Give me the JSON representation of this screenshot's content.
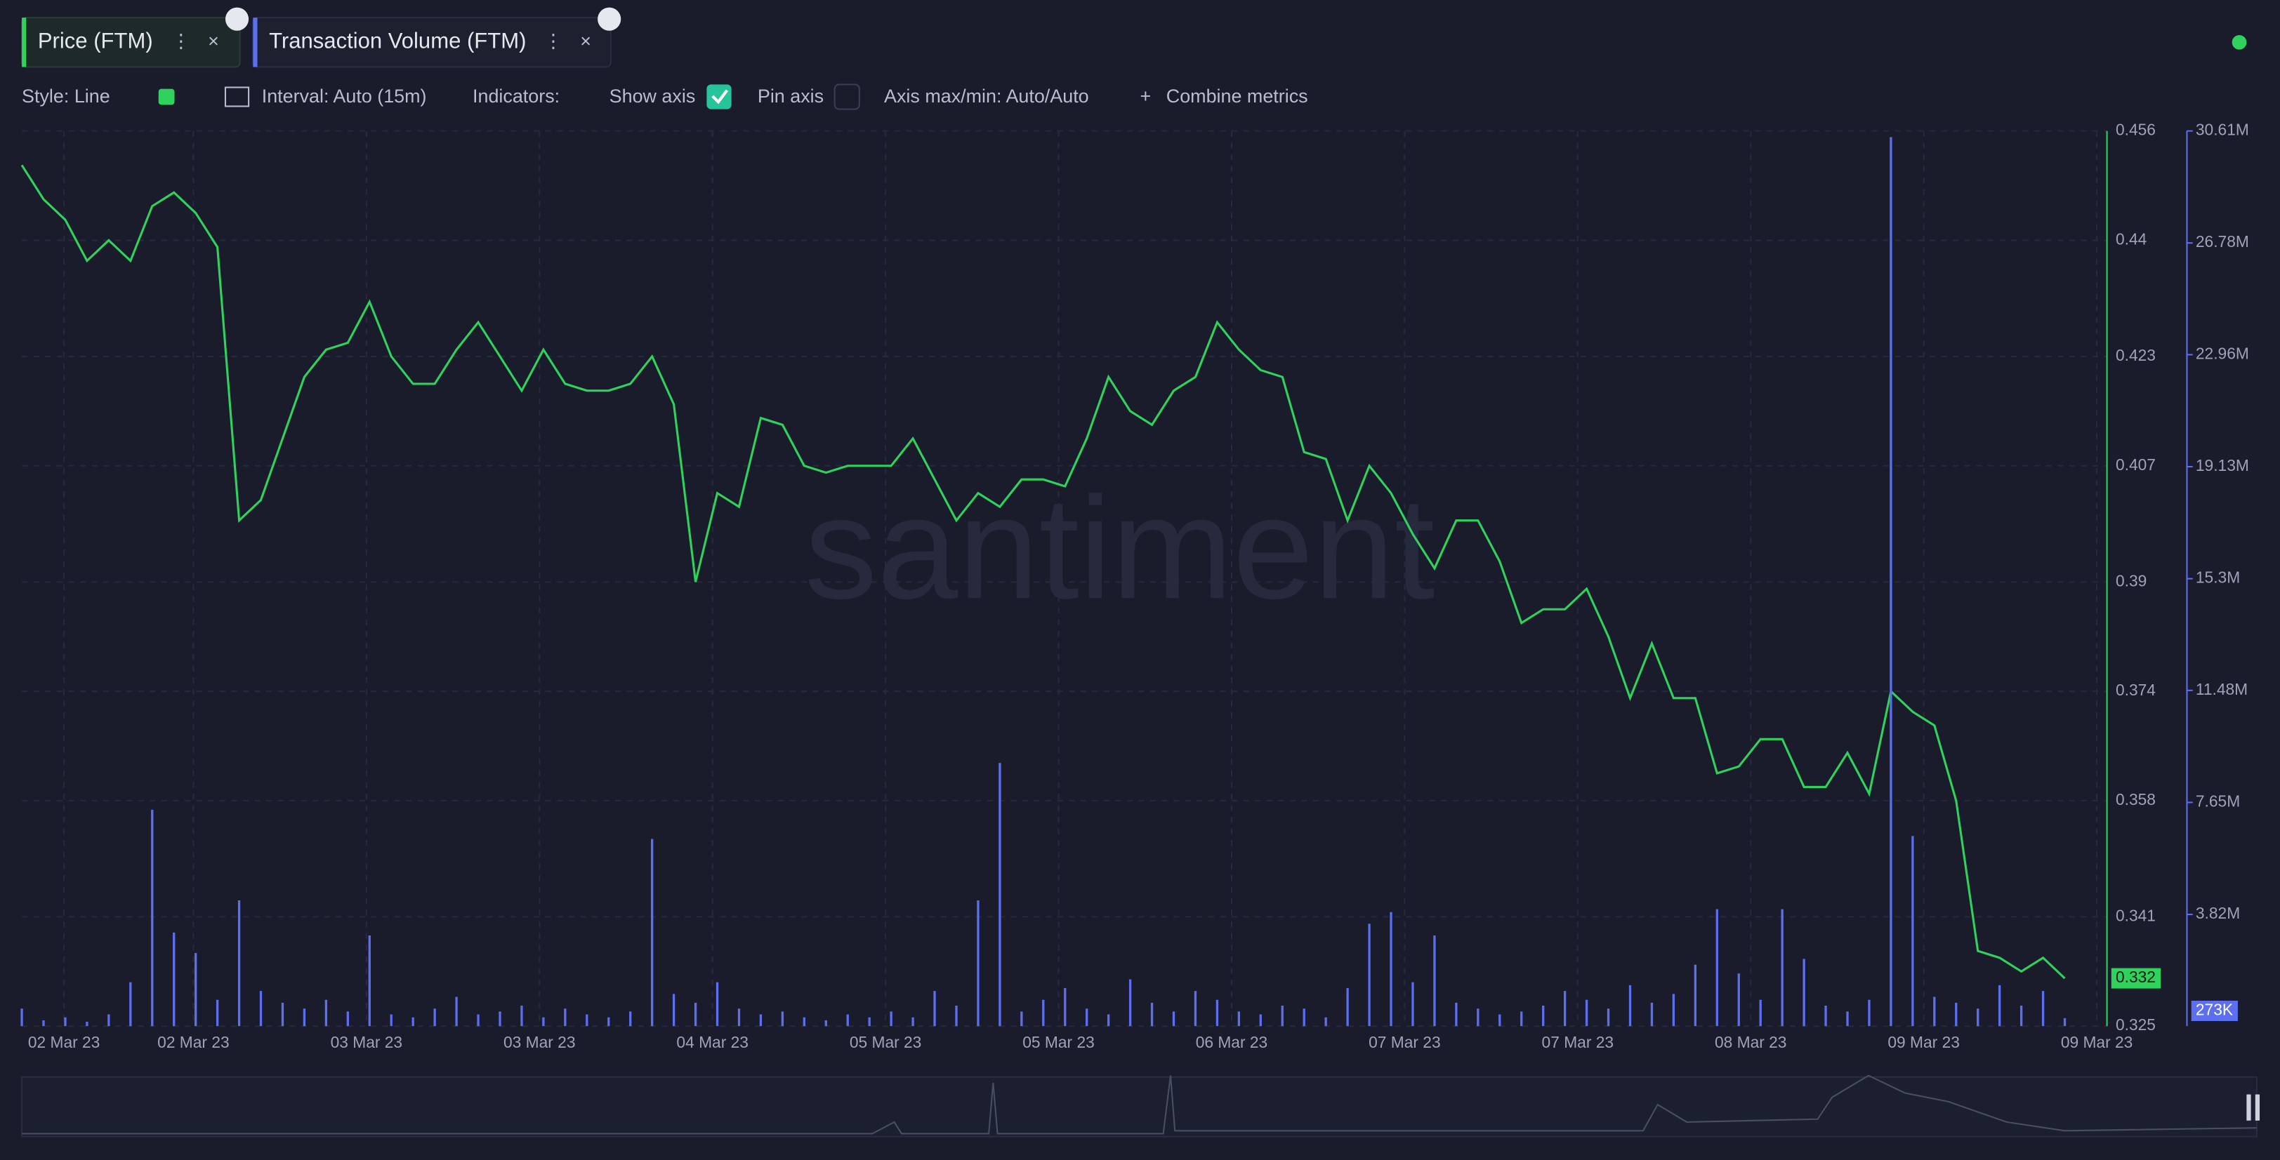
{
  "ui": {
    "tabs": [
      "Price (FTM)",
      "Transaction Volume (FTM)"
    ],
    "style": "Style: Line",
    "interval": "Interval: Auto (15m)",
    "indicators": "Indicators:",
    "show_axis": "Show axis",
    "pin_axis": "Pin axis",
    "axis_minmax": "Axis max/min: Auto/Auto",
    "combine": "Combine metrics",
    "watermark": "santiment"
  },
  "chart_data": {
    "type": "line_bar",
    "xtick_labels": [
      "02 Mar 23",
      "02 Mar 23",
      "03 Mar 23",
      "03 Mar 23",
      "04 Mar 23",
      "05 Mar 23",
      "05 Mar 23",
      "06 Mar 23",
      "07 Mar 23",
      "07 Mar 23",
      "08 Mar 23",
      "09 Mar 23",
      "09 Mar 23"
    ],
    "ylim": [
      0.325,
      0.456
    ],
    "yticks": [
      0.325,
      0.341,
      0.358,
      0.374,
      0.39,
      0.407,
      0.423,
      0.44,
      0.456
    ],
    "y2lim": [
      0,
      30610000
    ],
    "y2ticks": [
      {
        "value": 3820000,
        "label": "3.82M"
      },
      {
        "value": 7650000,
        "label": "7.65M"
      },
      {
        "value": 11480000,
        "label": "11.48M"
      },
      {
        "value": 15300000,
        "label": "15.3M"
      },
      {
        "value": 19130000,
        "label": "19.13M"
      },
      {
        "value": 22960000,
        "label": "22.96M"
      },
      {
        "value": 26780000,
        "label": "26.78M"
      },
      {
        "value": 30610000,
        "label": "30.61M"
      }
    ],
    "grid": true,
    "series": [
      {
        "name": "Price (FTM)",
        "type": "line",
        "color": "#2fd35c",
        "values": [
          0.451,
          0.446,
          0.443,
          0.437,
          0.44,
          0.437,
          0.445,
          0.447,
          0.444,
          0.439,
          0.399,
          0.402,
          0.411,
          0.42,
          0.424,
          0.425,
          0.431,
          0.423,
          0.419,
          0.419,
          0.424,
          0.428,
          0.423,
          0.418,
          0.424,
          0.419,
          0.418,
          0.418,
          0.419,
          0.423,
          0.416,
          0.39,
          0.403,
          0.401,
          0.414,
          0.413,
          0.407,
          0.406,
          0.407,
          0.407,
          0.407,
          0.411,
          0.405,
          0.399,
          0.403,
          0.401,
          0.405,
          0.405,
          0.404,
          0.411,
          0.42,
          0.415,
          0.413,
          0.418,
          0.42,
          0.428,
          0.424,
          0.421,
          0.42,
          0.409,
          0.408,
          0.399,
          0.407,
          0.403,
          0.397,
          0.392,
          0.399,
          0.399,
          0.393,
          0.384,
          0.386,
          0.386,
          0.389,
          0.382,
          0.373,
          0.381,
          0.373,
          0.373,
          0.362,
          0.363,
          0.367,
          0.367,
          0.36,
          0.36,
          0.365,
          0.359,
          0.374,
          0.371,
          0.369,
          0.358,
          0.336,
          0.335,
          0.333,
          0.335,
          0.332
        ]
      },
      {
        "name": "Transaction Volume (FTM)",
        "type": "bar",
        "axis": "y2",
        "color": "#5c6ff0",
        "values": [
          600000,
          200000,
          300000,
          150000,
          400000,
          1500000,
          7400000,
          3200000,
          2500000,
          900000,
          4300000,
          1200000,
          800000,
          600000,
          900000,
          500000,
          3100000,
          400000,
          300000,
          600000,
          1000000,
          400000,
          500000,
          700000,
          300000,
          600000,
          400000,
          300000,
          500000,
          6400000,
          1100000,
          800000,
          1500000,
          600000,
          400000,
          500000,
          300000,
          200000,
          400000,
          300000,
          500000,
          300000,
          1200000,
          700000,
          4300000,
          9000000,
          500000,
          900000,
          1300000,
          600000,
          400000,
          1600000,
          800000,
          500000,
          1200000,
          900000,
          500000,
          400000,
          700000,
          600000,
          300000,
          1300000,
          3500000,
          3900000,
          1500000,
          3100000,
          800000,
          600000,
          400000,
          500000,
          700000,
          1200000,
          900000,
          600000,
          1400000,
          800000,
          1100000,
          2100000,
          4000000,
          1800000,
          900000,
          4000000,
          2300000,
          700000,
          500000,
          900000,
          30400000,
          6500000,
          1000000,
          800000,
          600000,
          1400000,
          700000,
          1200000,
          273000
        ],
        "value_labels": [
          null,
          null,
          null,
          null,
          null,
          null,
          null,
          null,
          null,
          null,
          null,
          null,
          null,
          null,
          null,
          null,
          null,
          null,
          null,
          null,
          null,
          null,
          null,
          null,
          null,
          null,
          null,
          null,
          null,
          null,
          null,
          null,
          null,
          null,
          null,
          null,
          null,
          null,
          null,
          null,
          null,
          null,
          null,
          null,
          null,
          null,
          null,
          null,
          null,
          null,
          null,
          null,
          null,
          null,
          null,
          null,
          null,
          null,
          null,
          null,
          null,
          null,
          null,
          null,
          null,
          null,
          null,
          null,
          null,
          null,
          null,
          null,
          null,
          null,
          null,
          null,
          null,
          null,
          null,
          null,
          null,
          null,
          null,
          null,
          null,
          null,
          null,
          null,
          null,
          null,
          null,
          null,
          null,
          null,
          "273K"
        ]
      }
    ]
  }
}
